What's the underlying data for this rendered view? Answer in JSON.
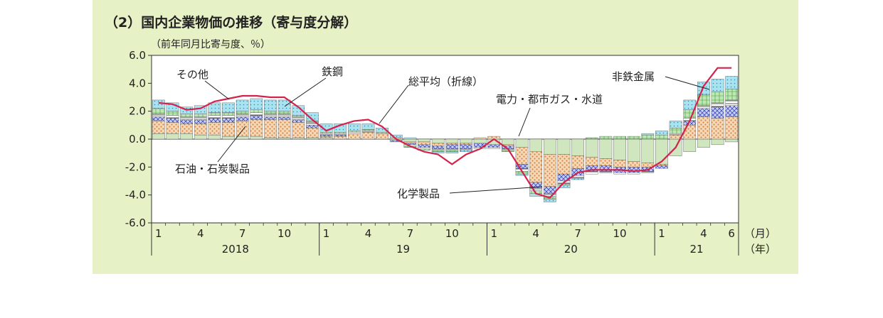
{
  "header": {
    "title": "（2）国内企業物価の推移（寄与度分解）",
    "unit": "（前年同月比寄与度、％）"
  },
  "chart_data": {
    "type": "bar",
    "title": "（2）国内企業物価の推移（寄与度分解）",
    "ylabel": "（前年同月比寄与度、％）",
    "ylim": [
      -6,
      6
    ],
    "y_ticks": [
      "6.0",
      "4.0",
      "2.0",
      "0.0",
      "-2.0",
      "-4.0",
      "-6.0"
    ],
    "month_ticks": [
      {
        "label": "1",
        "index": 0
      },
      {
        "label": "4",
        "index": 3
      },
      {
        "label": "7",
        "index": 6
      },
      {
        "label": "10",
        "index": 9
      },
      {
        "label": "1",
        "index": 12
      },
      {
        "label": "4",
        "index": 15
      },
      {
        "label": "7",
        "index": 18
      },
      {
        "label": "10",
        "index": 21
      },
      {
        "label": "1",
        "index": 24
      },
      {
        "label": "4",
        "index": 27
      },
      {
        "label": "7",
        "index": 30
      },
      {
        "label": "10",
        "index": 33
      },
      {
        "label": "1",
        "index": 36
      },
      {
        "label": "4",
        "index": 39
      },
      {
        "label": "6",
        "index": 41
      }
    ],
    "year_labels": [
      {
        "label": "2018",
        "start": 0,
        "end": 11
      },
      {
        "label": "19",
        "start": 12,
        "end": 23
      },
      {
        "label": "20",
        "start": 24,
        "end": 35
      },
      {
        "label": "21",
        "start": 36,
        "end": 41
      }
    ],
    "x_unit_month": "（月）",
    "x_unit_year": "（年）",
    "series": [
      {
        "name": "電力・都市ガス・水道",
        "color": "#cfe6bf",
        "values": [
          0.4,
          0.4,
          0.4,
          0.3,
          0.3,
          0.2,
          0.2,
          0.2,
          0.1,
          0.1,
          0.1,
          0.1,
          0.1,
          0.0,
          0.0,
          0.0,
          0.0,
          -0.1,
          -0.2,
          -0.2,
          -0.3,
          -0.3,
          -0.3,
          -0.3,
          -0.4,
          -0.4,
          -0.6,
          -0.9,
          -1.1,
          -1.1,
          -1.2,
          -1.3,
          -1.4,
          -1.5,
          -1.6,
          -1.7,
          -1.8,
          -1.2,
          -0.9,
          -0.6,
          -0.4,
          -0.2
        ]
      },
      {
        "name": "石油・石炭製品",
        "color": "#f6d8b4",
        "values": [
          0.9,
          0.8,
          0.7,
          0.8,
          0.9,
          1.0,
          1.1,
          1.2,
          1.3,
          1.3,
          1.1,
          0.7,
          0.1,
          0.2,
          0.4,
          0.5,
          0.4,
          0.1,
          -0.1,
          -0.2,
          -0.2,
          -0.1,
          -0.1,
          0.1,
          0.2,
          -0.1,
          -1.2,
          -2.2,
          -2.3,
          -1.4,
          -0.9,
          -0.6,
          -0.5,
          -0.5,
          -0.4,
          -0.3,
          -0.1,
          0.3,
          1.0,
          1.6,
          1.5,
          1.6
        ]
      },
      {
        "name": "化学製品",
        "color": "#9ba8e8",
        "values": [
          0.3,
          0.3,
          0.3,
          0.3,
          0.3,
          0.3,
          0.3,
          0.3,
          0.2,
          0.2,
          0.2,
          0.2,
          0.1,
          0.1,
          0.0,
          0.0,
          0.0,
          -0.1,
          -0.1,
          -0.2,
          -0.2,
          -0.3,
          -0.3,
          -0.3,
          -0.2,
          -0.2,
          -0.3,
          -0.4,
          -0.5,
          -0.5,
          -0.5,
          -0.4,
          -0.4,
          -0.4,
          -0.4,
          -0.3,
          -0.2,
          0.0,
          0.3,
          0.6,
          0.8,
          0.8
        ]
      },
      {
        "name": "鉄鋼",
        "color": "#ffffff",
        "values": [
          0.2,
          0.2,
          0.2,
          0.2,
          0.2,
          0.2,
          0.2,
          0.2,
          0.2,
          0.2,
          0.2,
          0.2,
          0.1,
          0.1,
          0.1,
          0.1,
          0.0,
          0.0,
          -0.1,
          -0.1,
          -0.1,
          -0.1,
          -0.1,
          -0.1,
          -0.1,
          -0.1,
          -0.2,
          -0.2,
          -0.2,
          -0.2,
          -0.2,
          -0.2,
          -0.1,
          -0.1,
          -0.1,
          -0.1,
          0.0,
          0.1,
          0.2,
          0.2,
          0.3,
          0.4
        ]
      },
      {
        "name": "非鉄金属",
        "color": "#a8dca0",
        "values": [
          0.4,
          0.3,
          0.2,
          0.2,
          0.2,
          0.2,
          0.2,
          0.2,
          0.2,
          0.2,
          0.1,
          0.1,
          0.1,
          0.1,
          0.1,
          0.1,
          0.1,
          0.0,
          -0.1,
          -0.1,
          -0.1,
          -0.1,
          0.0,
          0.0,
          0.0,
          -0.1,
          -0.2,
          -0.2,
          -0.2,
          -0.1,
          0.0,
          0.1,
          0.2,
          0.2,
          0.2,
          0.3,
          0.3,
          0.4,
          0.6,
          0.8,
          0.8,
          0.8
        ]
      },
      {
        "name": "その他",
        "color": "#8ed9ee",
        "values": [
          0.6,
          0.6,
          0.5,
          0.6,
          0.7,
          0.7,
          0.8,
          0.8,
          0.8,
          0.8,
          0.7,
          0.6,
          0.6,
          0.6,
          0.5,
          0.4,
          0.3,
          0.2,
          0.1,
          0.0,
          -0.1,
          -0.1,
          -0.1,
          0.0,
          0.0,
          0.0,
          -0.1,
          -0.2,
          -0.2,
          -0.2,
          -0.1,
          0.0,
          0.0,
          0.0,
          0.0,
          0.1,
          0.3,
          0.5,
          0.7,
          0.9,
          0.9,
          0.9
        ]
      }
    ],
    "total_line": {
      "name": "総平均（折線）",
      "color": "#d2224d",
      "values": [
        2.6,
        2.5,
        2.1,
        2.2,
        2.7,
        2.9,
        3.1,
        3.1,
        3.0,
        3.0,
        2.3,
        1.4,
        0.6,
        1.0,
        1.3,
        1.4,
        0.9,
        0.0,
        -0.5,
        -0.9,
        -1.1,
        -1.8,
        -1.1,
        -0.7,
        0.0,
        -0.7,
        -2.3,
        -3.9,
        -4.2,
        -3.1,
        -2.4,
        -2.2,
        -2.2,
        -2.2,
        -2.3,
        -2.2,
        -1.6,
        -0.6,
        1.3,
        3.8,
        5.1,
        5.1
      ]
    },
    "annotations": [
      "その他",
      "鉄鋼",
      "総平均（折線）",
      "電力・都市ガス・水道",
      "非鉄金属",
      "石油・石炭製品",
      "化学製品"
    ]
  }
}
